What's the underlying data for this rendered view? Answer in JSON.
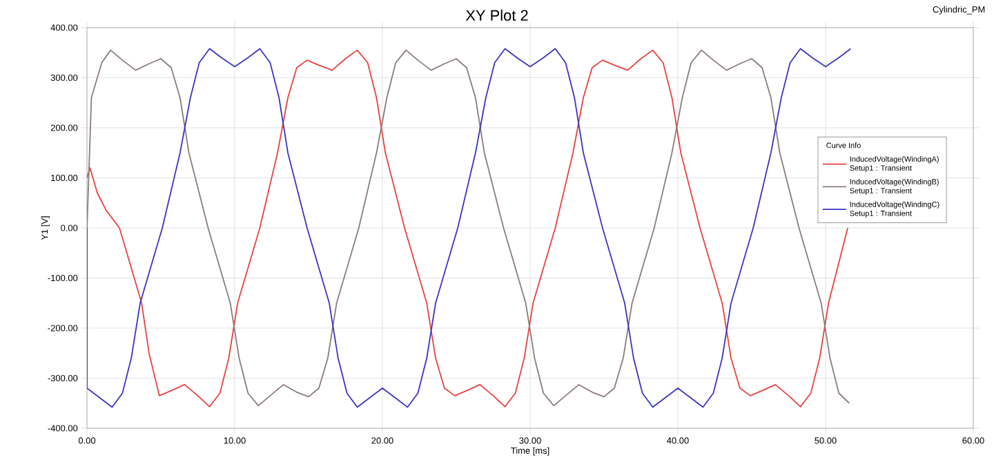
{
  "chart_data": {
    "type": "line",
    "title": "XY Plot 2",
    "xlabel": "Time [ms]",
    "ylabel": "Y1 [V]",
    "legend_title": "Curve Info",
    "annotations": [
      "Cylindric_PM",
      "Setup1 : Transient",
      "Setup1 : Transient",
      "Setup1 : Transient"
    ],
    "xlim": [
      0,
      60
    ],
    "ylim": [
      -400,
      400
    ],
    "xticks": [
      {
        "value": 0,
        "label": "0.00"
      },
      {
        "value": 10,
        "label": "10.00"
      },
      {
        "value": 20,
        "label": "20.00"
      },
      {
        "value": 30,
        "label": "30.00"
      },
      {
        "value": 40,
        "label": "40.00"
      },
      {
        "value": 50,
        "label": "50.00"
      },
      {
        "value": 60,
        "label": "60.00"
      }
    ],
    "yticks": [
      {
        "value": -400,
        "label": "-400.00"
      },
      {
        "value": -300,
        "label": "-300.00"
      },
      {
        "value": -200,
        "label": "-200.00"
      },
      {
        "value": -100,
        "label": "-100.00"
      },
      {
        "value": 0,
        "label": "0.00"
      },
      {
        "value": 100,
        "label": "100.00"
      },
      {
        "value": 200,
        "label": "200.00"
      },
      {
        "value": 300,
        "label": "300.00"
      },
      {
        "value": 400,
        "label": "400.00"
      }
    ],
    "grid": true,
    "legend": "right",
    "marker": "none",
    "line_style": "solid",
    "series": [
      {
        "name": "InducedVoltage(WindingA)",
        "color": "#e8413f",
        "x": [
          0,
          0.2,
          0.7,
          1.3,
          2.2,
          3.7,
          4.2,
          4.9,
          5.7,
          6.6,
          7.5,
          8.3,
          9.0,
          9.6,
          10.2,
          11.7,
          12.9,
          13.6,
          14.2,
          14.9,
          15.7,
          16.6,
          17.5,
          18.3,
          19.0,
          19.6,
          20.2,
          21.5,
          23.0,
          23.6,
          24.2,
          24.9,
          25.7,
          26.6,
          27.5,
          28.3,
          29.0,
          29.6,
          30.2,
          31.7,
          32.9,
          33.6,
          34.2,
          34.9,
          35.7,
          36.6,
          37.5,
          38.3,
          39.0,
          39.6,
          40.2,
          41.5,
          43.0,
          43.6,
          44.2,
          44.9,
          45.7,
          46.6,
          47.5,
          48.3,
          49.0,
          49.6,
          50.2,
          51.5
        ],
        "values": [
          100,
          120,
          70,
          35,
          0,
          -150,
          -250,
          -335,
          -325,
          -313,
          -335,
          -357,
          -330,
          -260,
          -150,
          0,
          150,
          260,
          320,
          335,
          325,
          315,
          338,
          355,
          330,
          260,
          150,
          0,
          -150,
          -260,
          -320,
          -335,
          -325,
          -313,
          -335,
          -357,
          -330,
          -260,
          -150,
          0,
          150,
          260,
          320,
          335,
          325,
          315,
          338,
          355,
          330,
          260,
          150,
          0,
          -150,
          -260,
          -320,
          -335,
          -325,
          -313,
          -335,
          -357,
          -330,
          -260,
          -150,
          0
        ]
      },
      {
        "name": "InducedVoltage(WindingB)",
        "color": "#8c7b7b",
        "x": [
          0,
          0.3,
          1.0,
          1.6,
          2.4,
          3.3,
          4.2,
          5.0,
          5.7,
          6.3,
          6.9,
          8.2,
          9.7,
          10.3,
          10.9,
          11.6,
          12.4,
          13.3,
          14.2,
          15.0,
          15.7,
          16.3,
          16.9,
          18.4,
          19.6,
          20.3,
          20.9,
          21.6,
          22.4,
          23.3,
          24.2,
          25.0,
          25.7,
          26.3,
          26.9,
          28.2,
          29.7,
          30.3,
          30.9,
          31.6,
          32.4,
          33.3,
          34.2,
          35.0,
          35.7,
          36.3,
          36.9,
          38.4,
          39.6,
          40.3,
          40.9,
          41.6,
          42.4,
          43.3,
          44.2,
          45.0,
          45.7,
          46.3,
          46.9,
          48.2,
          49.7,
          50.3,
          50.9,
          51.6
        ],
        "values": [
          0,
          260,
          330,
          355,
          335,
          315,
          328,
          338,
          320,
          260,
          150,
          0,
          -150,
          -260,
          -330,
          -355,
          -335,
          -313,
          -328,
          -337,
          -320,
          -260,
          -150,
          0,
          150,
          260,
          330,
          355,
          335,
          315,
          328,
          338,
          320,
          260,
          150,
          0,
          -150,
          -260,
          -330,
          -355,
          -335,
          -313,
          -328,
          -337,
          -320,
          -260,
          -150,
          0,
          150,
          260,
          330,
          355,
          335,
          315,
          328,
          338,
          320,
          260,
          150,
          0,
          -150,
          -260,
          -330,
          -350
        ]
      },
      {
        "name": "InducedVoltage(WindingC)",
        "color": "#3a34c4",
        "x": [
          0,
          0,
          0.9,
          1.7,
          2.4,
          3.0,
          3.6,
          5.1,
          6.3,
          7.0,
          7.6,
          8.3,
          9.1,
          10,
          10.9,
          11.7,
          12.4,
          13,
          13.6,
          14.9,
          16.4,
          17,
          17.6,
          18.3,
          19.1,
          20,
          20.9,
          21.7,
          22.4,
          23,
          23.6,
          25.1,
          26.3,
          27,
          27.6,
          28.3,
          29.1,
          30,
          30.9,
          31.7,
          32.4,
          33,
          33.6,
          34.9,
          36.4,
          37,
          37.6,
          38.3,
          39.1,
          40,
          40.9,
          41.7,
          42.4,
          43,
          43.6,
          45.1,
          46.3,
          47,
          47.6,
          48.3,
          49.1,
          50,
          50.9,
          51.7
        ],
        "values": [
          0,
          -320,
          -340,
          -358,
          -330,
          -260,
          -150,
          0,
          150,
          260,
          330,
          358,
          340,
          322,
          340,
          358,
          330,
          260,
          150,
          0,
          -150,
          -260,
          -330,
          -358,
          -340,
          -320,
          -340,
          -358,
          -330,
          -260,
          -150,
          0,
          150,
          260,
          330,
          358,
          340,
          322,
          340,
          358,
          330,
          260,
          150,
          0,
          -150,
          -260,
          -330,
          -358,
          -340,
          -320,
          -340,
          -358,
          -330,
          -260,
          -150,
          0,
          150,
          260,
          330,
          358,
          340,
          322,
          340,
          358
        ]
      }
    ]
  }
}
